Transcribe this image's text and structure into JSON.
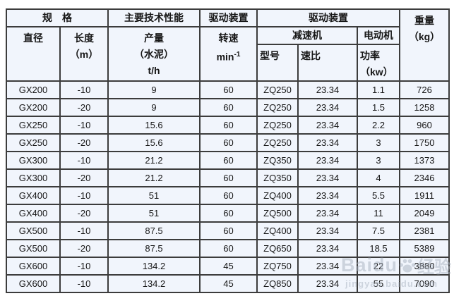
{
  "colors": {
    "page_background": "#ffffff",
    "cell_background": "#f1f5fc",
    "border": "#3c3c3c",
    "text": "#161616",
    "watermark": "#a9b2bf"
  },
  "table": {
    "header": {
      "spec": "规　格",
      "main_perf": "主要技术性能",
      "drive1": "驱动装置",
      "drive2": "驱动装置",
      "weight_lines": [
        "重量",
        "（kg）"
      ],
      "diameter": "直径",
      "length_lines": [
        "长度",
        "（m）"
      ],
      "capacity_lines": [
        "产量",
        "（水泥）",
        "t/h"
      ],
      "speed_line1": "转速",
      "speed_base": "min",
      "speed_sup": "-1",
      "reducer": "减速机",
      "motor": "电动机",
      "model": "型号",
      "ratio": "速比",
      "power_lines": [
        "功率",
        "（kw）"
      ]
    },
    "rows": [
      [
        "GX200",
        "-10",
        "9",
        "60",
        "ZQ250",
        "23.34",
        "1.1",
        "726"
      ],
      [
        "GX200",
        "-20",
        "9",
        "60",
        "ZQ250",
        "23.34",
        "1.5",
        "1258"
      ],
      [
        "GX250",
        "-10",
        "15.6",
        "60",
        "ZQ250",
        "23.34",
        "2.2",
        "960"
      ],
      [
        "GX250",
        "-20",
        "15.6",
        "60",
        "ZQ250",
        "23.34",
        "3",
        "1750"
      ],
      [
        "GX300",
        "-10",
        "21.2",
        "60",
        "ZQ350",
        "23.34",
        "3",
        "1373"
      ],
      [
        "GX300",
        "-20",
        "21.2",
        "60",
        "ZQ350",
        "23.34",
        "4",
        "2346"
      ],
      [
        "GX400",
        "-10",
        "51",
        "60",
        "ZQ400",
        "23.34",
        "5.5",
        "1911"
      ],
      [
        "GX400",
        "-20",
        "51",
        "60",
        "ZQ500",
        "23.34",
        "11",
        "2049"
      ],
      [
        "GX500",
        "-10",
        "87.5",
        "60",
        "ZQ400",
        "23.34",
        "7.5",
        "2381"
      ],
      [
        "GX500",
        "-20",
        "87.5",
        "60",
        "ZQ650",
        "23.34",
        "18.5",
        "5389"
      ],
      [
        "GX600",
        "-10",
        "134.2",
        "45",
        "ZQ750",
        "23.34",
        "22",
        "3880"
      ],
      [
        "GX600",
        "-10",
        "134.2",
        "45",
        "ZQ850",
        "23.34",
        "55",
        "7090"
      ]
    ]
  },
  "watermark": {
    "brand": "Baidu",
    "suffix": "经验",
    "url": "jingyan.baidu.com"
  }
}
